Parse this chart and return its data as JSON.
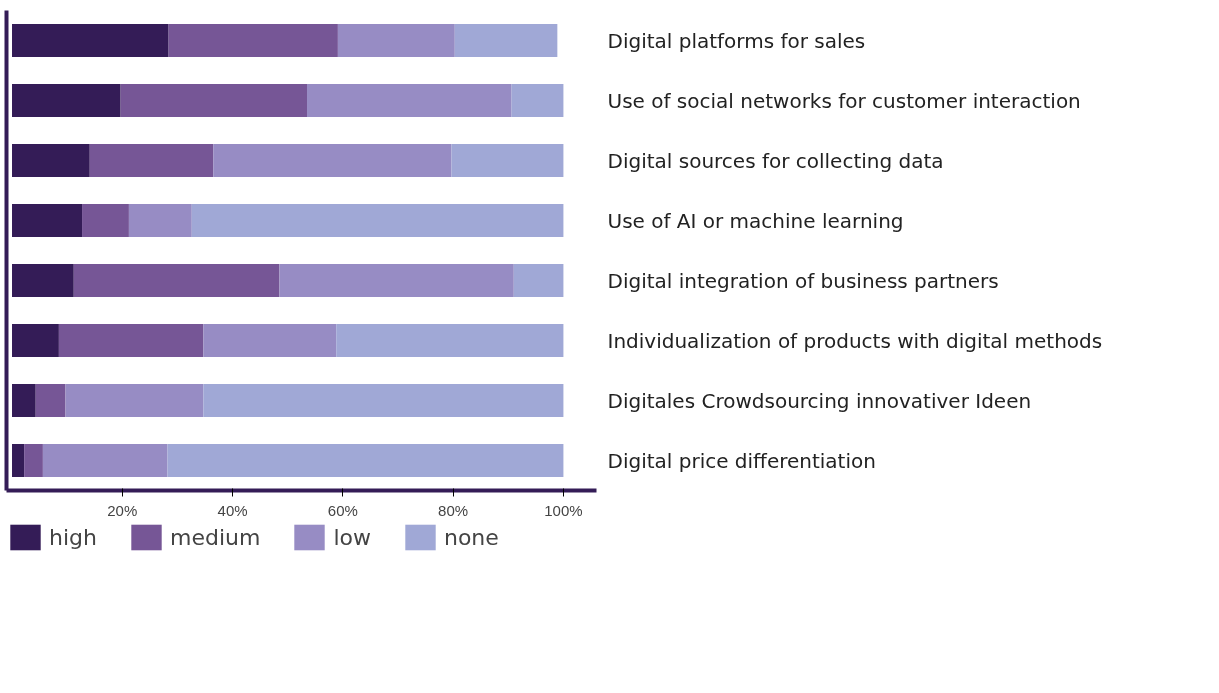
{
  "chart_data": {
    "type": "bar",
    "orientation": "horizontal",
    "stacked": true,
    "categories": [
      "Digital platforms for sales",
      "Use of social networks for customer interaction",
      "Digital sources for collecting data",
      "Use of AI or machine learning",
      "Digital integration of business partners",
      "Individualization of products with digital methods",
      "Digitales Crowdsourcing innovativer Ideen",
      "Digital price differentiation"
    ],
    "series": [
      {
        "name": "high",
        "color": "#341c57",
        "values": [
          28.4,
          19.7,
          14.1,
          12.7,
          11.2,
          8.5,
          4.3,
          2.2
        ]
      },
      {
        "name": "medium",
        "color": "#765696",
        "values": [
          30.7,
          33.8,
          22.4,
          8.5,
          37.3,
          26.2,
          5.4,
          3.4
        ]
      },
      {
        "name": "low",
        "color": "#978cc4",
        "values": [
          21.2,
          37.1,
          43.2,
          11.4,
          42.5,
          24.1,
          25.0,
          22.6
        ]
      },
      {
        "name": "none",
        "color": "#a0a8d6",
        "values": [
          18.6,
          9.4,
          20.3,
          67.4,
          9.0,
          41.2,
          65.3,
          71.8
        ]
      }
    ],
    "xlim": [
      -1,
      106
    ],
    "xticks": [
      {
        "value": 20,
        "label": "20%"
      },
      {
        "value": 40,
        "label": "40%"
      },
      {
        "value": 60,
        "label": "60%"
      },
      {
        "value": 80,
        "label": "80%"
      },
      {
        "value": 100,
        "label": "100%"
      }
    ],
    "grid": false,
    "legend": "bottom left"
  }
}
